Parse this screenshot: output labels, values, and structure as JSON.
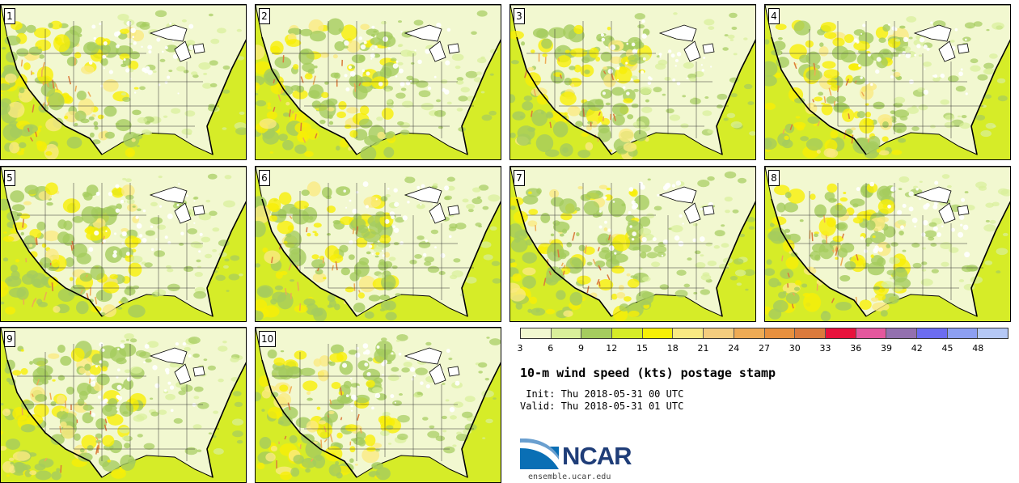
{
  "panels": [
    {
      "label": "1"
    },
    {
      "label": "2"
    },
    {
      "label": "3"
    },
    {
      "label": "4"
    },
    {
      "label": "5"
    },
    {
      "label": "6"
    },
    {
      "label": "7"
    },
    {
      "label": "8"
    },
    {
      "label": "9"
    },
    {
      "label": "10"
    }
  ],
  "colorbar": {
    "colors": [
      "#f2f8d0",
      "#d9ef9a",
      "#a5cc5e",
      "#d6ec28",
      "#f7ef06",
      "#faea82",
      "#f5cd7e",
      "#eeab55",
      "#e8903e",
      "#db7a3c",
      "#e8123c",
      "#e4579d",
      "#9370af",
      "#6c6cf0",
      "#8d9ff2",
      "#b5c8f6"
    ],
    "tick_labels": [
      "3",
      "6",
      "9",
      "12",
      "15",
      "18",
      "21",
      "24",
      "27",
      "30",
      "33",
      "36",
      "39",
      "42",
      "45",
      "48"
    ],
    "units": "kts"
  },
  "title": "10-m wind speed (kts) postage stamp",
  "init": " Init: Thu 2018-05-31 00 UTC",
  "valid": "Valid: Thu 2018-05-31 01 UTC",
  "logo": {
    "text": "NCAR"
  },
  "site": "ensemble.ucar.edu"
}
